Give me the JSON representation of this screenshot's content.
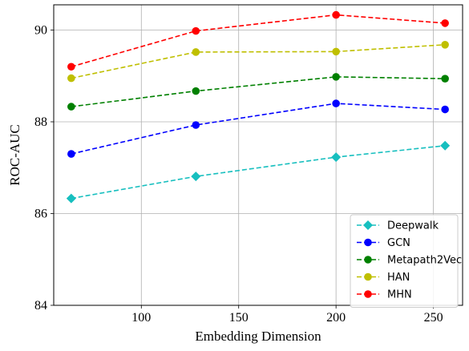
{
  "chart_data": {
    "type": "line",
    "title": "",
    "xlabel": "Embedding Dimension",
    "ylabel": "ROC-AUC",
    "x": [
      64,
      128,
      200,
      256
    ],
    "xlim": [
      55,
      265
    ],
    "ylim": [
      84,
      90.55
    ],
    "xticks": [
      100,
      150,
      200,
      250
    ],
    "yticks": [
      84,
      86,
      88,
      90
    ],
    "grid": true,
    "legend_position": "lower-right",
    "series": [
      {
        "name": "Deepwalk",
        "color": "#17BFBF",
        "marker": "diamond",
        "values": [
          86.33,
          86.81,
          87.23,
          87.48
        ]
      },
      {
        "name": "GCN",
        "color": "#0000FF",
        "marker": "circle",
        "values": [
          87.3,
          87.93,
          88.4,
          88.27
        ]
      },
      {
        "name": "Metapath2Vec",
        "color": "#008000",
        "marker": "circle",
        "values": [
          88.33,
          88.67,
          88.98,
          88.94
        ]
      },
      {
        "name": "HAN",
        "color": "#BFBF00",
        "marker": "circle",
        "values": [
          88.95,
          89.52,
          89.53,
          89.68
        ]
      },
      {
        "name": "MHN",
        "color": "#FF0000",
        "marker": "circle",
        "values": [
          89.2,
          89.98,
          90.33,
          90.15
        ]
      }
    ]
  }
}
